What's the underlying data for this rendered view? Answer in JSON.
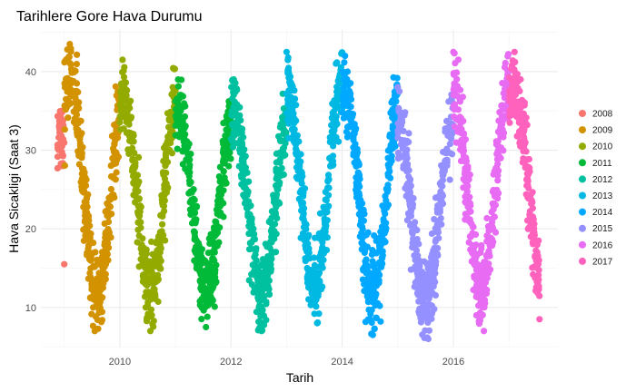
{
  "chart_data": {
    "type": "scatter",
    "title": "Tarihlere Gore Hava Durumu",
    "xlabel": "Tarih",
    "ylabel": "Hava Sicakligi (Saat 3)",
    "xlim": [
      2008.58,
      2017.88
    ],
    "ylim": [
      4.9,
      45.3
    ],
    "x_ticks": [
      2010,
      2012,
      2014,
      2016
    ],
    "x_tick_labels": [
      "2010",
      "2012",
      "2014",
      "2016"
    ],
    "y_ticks": [
      10,
      20,
      30,
      40
    ],
    "y_tick_labels": [
      "10",
      "20",
      "30",
      "40"
    ],
    "grid": true,
    "legend": "right",
    "series": [
      {
        "name": "2008",
        "color": "#F8766D",
        "x_range": [
          2008.88,
          2009.0
        ],
        "min": 15.5,
        "max": 35.0,
        "peak": 2008.95,
        "trough": 2009.0
      },
      {
        "name": "2009",
        "color": "#D39200",
        "x_range": [
          2009.0,
          2010.0
        ],
        "min": 7.0,
        "max": 43.5,
        "peak": 2009.1,
        "trough": 2009.55
      },
      {
        "name": "2010",
        "color": "#93AA00",
        "x_range": [
          2010.0,
          2011.0
        ],
        "min": 7.0,
        "max": 41.5,
        "peak": 2010.05,
        "trough": 2010.55
      },
      {
        "name": "2011",
        "color": "#00BA38",
        "x_range": [
          2011.0,
          2012.0
        ],
        "min": 7.5,
        "max": 39.0,
        "peak": 2011.05,
        "trough": 2011.55
      },
      {
        "name": "2012",
        "color": "#00C19F",
        "x_range": [
          2012.0,
          2013.0
        ],
        "min": 7.0,
        "max": 39.0,
        "peak": 2012.05,
        "trough": 2012.55
      },
      {
        "name": "2013",
        "color": "#00B9E3",
        "x_range": [
          2013.0,
          2014.0
        ],
        "min": 8.0,
        "max": 42.5,
        "peak": 2013.0,
        "trough": 2013.55
      },
      {
        "name": "2014",
        "color": "#00A9FF",
        "x_range": [
          2014.0,
          2015.0
        ],
        "min": 6.5,
        "max": 42.0,
        "peak": 2014.05,
        "trough": 2014.55
      },
      {
        "name": "2015",
        "color": "#9590FF",
        "x_range": [
          2015.0,
          2016.0
        ],
        "min": 6.0,
        "max": 38.0,
        "peak": 2015.0,
        "trough": 2015.55
      },
      {
        "name": "2016",
        "color": "#E76BF3",
        "x_range": [
          2016.0,
          2017.0
        ],
        "min": 7.0,
        "max": 42.5,
        "peak": 2016.0,
        "trough": 2016.55
      },
      {
        "name": "2017",
        "color": "#FF62BC",
        "x_range": [
          2017.0,
          2017.55
        ],
        "min": 8.5,
        "max": 42.5,
        "peak": 2017.1,
        "trough": 2017.55
      }
    ]
  }
}
